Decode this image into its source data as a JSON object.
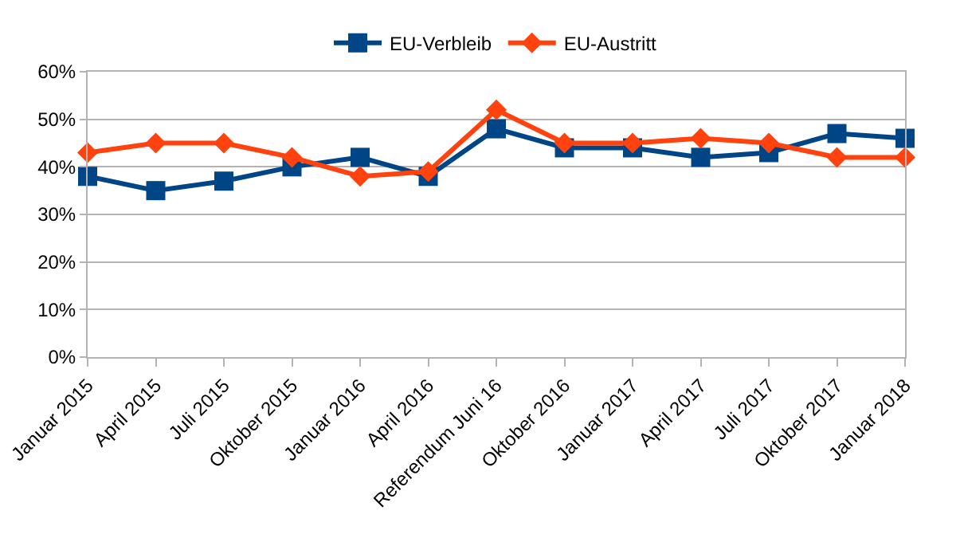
{
  "chart_data": {
    "type": "line",
    "categories": [
      "Januar 2015",
      "April 2015",
      "Juli 2015",
      "Oktober 2015",
      "Januar 2016",
      "April 2016",
      "Referendum Juni 16",
      "Oktober 2016",
      "Januar 2017",
      "April 2017",
      "Juli 2017",
      "Oktober 2017",
      "Januar 2018"
    ],
    "series": [
      {
        "name": "EU-Verbleib",
        "color": "#004586",
        "marker": "square",
        "values": [
          38,
          35,
          37,
          40,
          42,
          38,
          48,
          44,
          44,
          42,
          43,
          47,
          46
        ]
      },
      {
        "name": "EU-Austritt",
        "color": "#ff420e",
        "marker": "diamond",
        "values": [
          43,
          45,
          45,
          42,
          38,
          39,
          52,
          45,
          45,
          46,
          45,
          42,
          42
        ]
      }
    ],
    "ylim": [
      0,
      60
    ],
    "yticks": [
      {
        "value": 0,
        "label": "0%"
      },
      {
        "value": 10,
        "label": "10%"
      },
      {
        "value": 20,
        "label": "20%"
      },
      {
        "value": 30,
        "label": "30%"
      },
      {
        "value": 40,
        "label": "40%"
      },
      {
        "value": 50,
        "label": "50%"
      },
      {
        "value": 60,
        "label": "60%"
      }
    ],
    "grid": "y",
    "legend": "top",
    "line_style": "solid"
  }
}
